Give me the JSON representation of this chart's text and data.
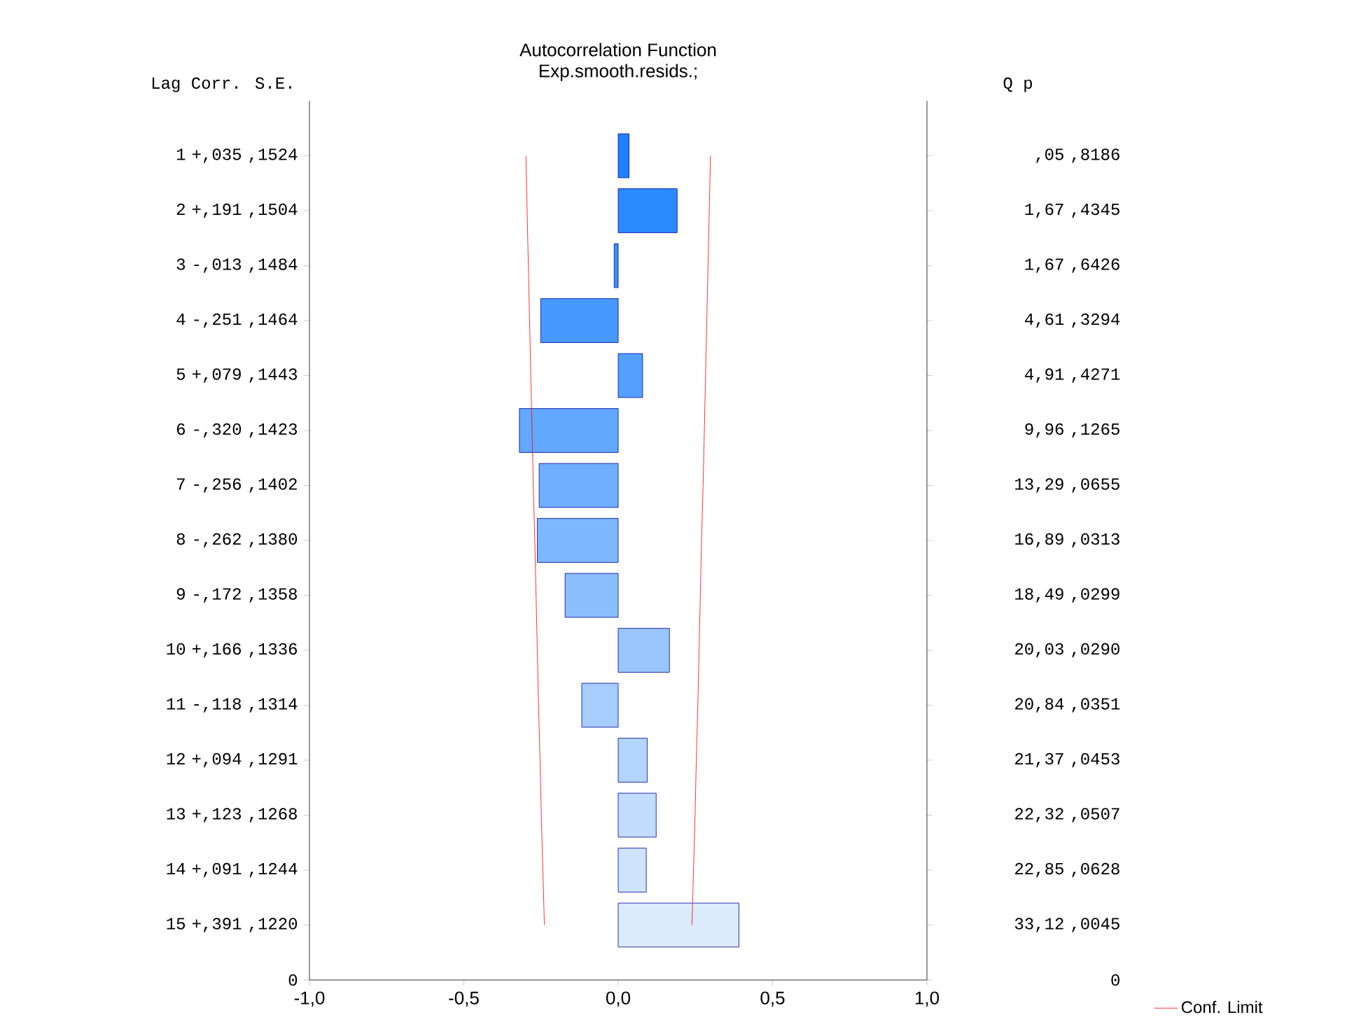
{
  "chart_data": {
    "type": "bar",
    "orientation": "horizontal",
    "title": "Autocorrelation Function",
    "subtitle": "Exp.smooth.resids.;",
    "ylabel": "Lag  Corr. S.E.",
    "y2label": "Q    p",
    "categories": [
      "1  +,035 ,1524",
      "2  +,191 ,1504",
      "3  -,013 ,1484",
      "4  -,251 ,1464",
      "5  +,079 ,1443",
      "6  -,320 ,1423",
      "7  -,256 ,1402",
      "8  -,262 ,1380",
      "9  -,172 ,1358",
      "10  +,166 ,1336",
      "11  -,118 ,1314",
      "12  +,094 ,1291",
      "13  +,123 ,1268",
      "14  +,091 ,1244",
      "15  +,391 ,1220",
      "0"
    ],
    "y2_categories": [
      ",05 ,8186",
      "1,67 ,4345",
      "1,67 ,6426",
      "4,61 ,3294",
      "4,91 ,4271",
      "9,96 ,1265",
      "13,29 ,0655",
      "16,89 ,0313",
      "18,49 ,0299",
      "20,03 ,0290",
      "20,84 ,0351",
      "21,37 ,0453",
      "22,32 ,0507",
      "22,85 ,0628",
      "33,12 ,0045",
      "0"
    ],
    "series": [
      {
        "values": [
          0.035,
          0.191,
          -0.013,
          -0.251,
          0.079,
          -0.32,
          -0.256,
          -0.262,
          -0.172,
          0.166,
          -0.118,
          0.094,
          0.123,
          0.091,
          0.391,
          null
        ],
        "colors": [
          "#1e82ff",
          "#2b8aff",
          "#3991ff",
          "#4799ff",
          "#54a0fe",
          "#62a8fe",
          "#6faffe",
          "#7db7fe",
          "#8bbefd",
          "#98c6fd",
          "#a6cdfd",
          "#b3d5fd",
          "#c1dcfc",
          "#cee4fc",
          "#dcebfc",
          null
        ]
      },
      {
        "type": "line",
        "name": "Conf. Limit",
        "color": "#ff0000",
        "values": [
          0.299,
          0.295,
          0.291,
          0.287,
          0.283,
          0.279,
          0.275,
          0.27,
          0.266,
          0.262,
          0.258,
          0.253,
          0.249,
          0.244,
          0.239,
          null
        ]
      },
      {
        "type": "line",
        "color": "#ff0000",
        "values": [
          -0.299,
          -0.295,
          -0.291,
          -0.287,
          -0.283,
          -0.279,
          -0.275,
          -0.27,
          -0.266,
          -0.262,
          -0.258,
          -0.253,
          -0.249,
          -0.244,
          -0.239,
          null
        ]
      }
    ],
    "xlim": [
      -1,
      1
    ],
    "xticks": [
      {
        "value": -1,
        "label": "-1,0"
      },
      {
        "value": -0.5,
        "label": "-0,5"
      },
      {
        "value": 0,
        "label": "0,0"
      },
      {
        "value": 0.5,
        "label": "0,5"
      },
      {
        "value": 1,
        "label": "1,0"
      }
    ],
    "grid": false,
    "legend": "bottom right"
  }
}
